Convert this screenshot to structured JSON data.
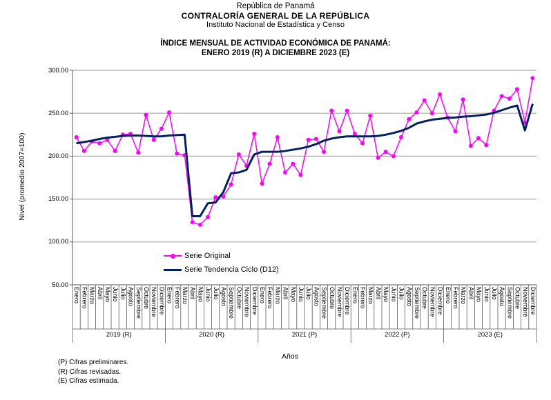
{
  "header": {
    "line1": "República de Panamá",
    "line2": "CONTRALORÍA GENERAL DE LA REPÚBLICA",
    "line3": "Instituto Nacional de Estadística y Censo"
  },
  "title": {
    "line1": "ÍNDICE MENSUAL DE ACTIVIDAD ECONÓMICA DE PANAMÁ:",
    "line2": "ENERO 2019 (R) A DICIEMBRE 2023 (E)"
  },
  "chart_data": {
    "type": "line",
    "title": "ÍNDICE MENSUAL DE ACTIVIDAD ECONÓMICA DE PANAMÁ: ENERO 2019 (R) A DICIEMBRE 2023 (E)",
    "xlabel": "Años",
    "ylabel": "Nivel (promedio 2007=100)",
    "ylim": [
      50,
      300
    ],
    "ytick_step": 50,
    "ytick_labels": [
      "50.00",
      "100.00",
      "150.00",
      "200.00",
      "250.00",
      "300.00"
    ],
    "grid": true,
    "legend_position": "inside-bottom-left",
    "months": [
      "Enero",
      "Febrero",
      "Marzo",
      "Abril",
      "Mayo",
      "Junio",
      "Julio",
      "Agosto",
      "Septiembre",
      "Octubre",
      "Noviembre",
      "Diciembre"
    ],
    "year_groups": [
      "2019 (R)",
      "2020 (R)",
      "2021 (P)",
      "2022 (P)",
      "2023 (E)"
    ],
    "legend": [
      "Serie Original",
      "Serie Tendencia Ciclo (D12)"
    ],
    "series": [
      {
        "name": "Serie Original",
        "color": "#FF00FF",
        "marker": true,
        "line_width": 1.5,
        "values": [
          222,
          206,
          217,
          215,
          219,
          206,
          225,
          226,
          204,
          248,
          219,
          232,
          251,
          203,
          201,
          123,
          120,
          129,
          152,
          153,
          167,
          202,
          189,
          226,
          168,
          191,
          222,
          181,
          191,
          178,
          219,
          220,
          205,
          253,
          229,
          253,
          226,
          215,
          247,
          198,
          205,
          200,
          222,
          243,
          251,
          265,
          250,
          272,
          245,
          229,
          266,
          212,
          221,
          213,
          253,
          270,
          267,
          278,
          239,
          291
        ]
      },
      {
        "name": "Serie Tendencia Ciclo (D12)",
        "color": "#002060",
        "marker": false,
        "line_width": 3,
        "values": [
          215,
          216.5,
          218,
          220,
          221.5,
          222.5,
          223.5,
          224,
          224,
          223.5,
          223,
          223,
          224,
          224.5,
          225,
          130,
          130,
          145,
          146,
          158,
          180,
          181,
          184,
          202,
          205,
          205,
          205,
          206,
          207.5,
          209,
          211,
          214,
          218,
          220.5,
          222,
          223,
          223,
          223,
          223,
          223.5,
          225,
          227,
          229.5,
          233,
          238,
          240.5,
          242.5,
          243.5,
          244.5,
          245,
          246,
          246.5,
          247.5,
          248.5,
          250.5,
          253.5,
          256.5,
          259,
          230,
          261
        ]
      }
    ]
  },
  "footnotes": [
    "(P) Cifras preliminares.",
    "(R) Cifras revisadas.",
    "(E) Cifras estimada."
  ],
  "colors": {
    "serie_original": "#FF00FF",
    "trend": "#002060",
    "gridline": "#A6A6A6",
    "axis": "#595959",
    "text": "#000000",
    "background": "#FFFFFF"
  }
}
